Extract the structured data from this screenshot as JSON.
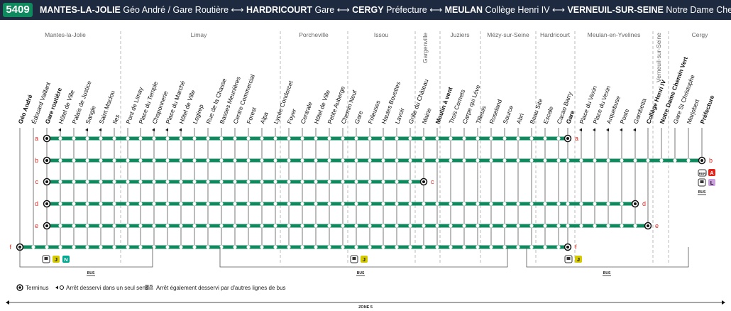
{
  "route": {
    "number": "5409",
    "title_parts": [
      {
        "b": "MANTES-LA-JOLIE",
        "t": " Géo André / Gare Routière"
      },
      {
        "b": "HARDRICOURT",
        "t": " Gare"
      },
      {
        "b": "CERGY",
        "t": " Préfecture"
      },
      {
        "b": "MEULAN",
        "t": " Collège Henri IV"
      },
      {
        "b": "VERNEUIL-SUR-SEINE",
        "t": " Notre Dame Chemin Vert"
      }
    ],
    "arrow": "⟷"
  },
  "colors": {
    "line": "#0f8a5f",
    "header_bg": "#1e2a3f",
    "badge": "#0f8a5f",
    "letter": "#e2261d",
    "rer_a": "#e2231a",
    "line_j": "#d5c900",
    "line_n": "#00a88f",
    "line_l": "#c9a0dc"
  },
  "towns": [
    "Mantes-la-Jolie",
    "Limay",
    "Porcheville",
    "Issou",
    "Gargenville",
    "Juziers",
    "Mézy-sur-Seine",
    "Hardricourt",
    "Meulan-en-Yvelines",
    "Verneuil-sur-Seine",
    "Cergy"
  ],
  "stops": [
    {
      "name": "Géo André",
      "bold": true
    },
    {
      "name": "Édouard Vaillant",
      "bold": false
    },
    {
      "name": "Gare routière",
      "bold": true
    },
    {
      "name": "Hôtel de Ville",
      "bold": false
    },
    {
      "name": "Palais de Justice",
      "bold": false
    },
    {
      "name": "Sangle",
      "bold": false
    },
    {
      "name": "Saint Maclou",
      "bold": false
    },
    {
      "name": "Iles",
      "bold": false
    },
    {
      "name": "Pont de Limay",
      "bold": false
    },
    {
      "name": "Place du Temple",
      "bold": false
    },
    {
      "name": "Chaponnerie",
      "bold": false
    },
    {
      "name": "Place du Marché",
      "bold": false
    },
    {
      "name": "Hôtel de Ville",
      "bold": false
    },
    {
      "name": "Logirep",
      "bold": false
    },
    {
      "name": "Rue de la Chasse",
      "bold": false
    },
    {
      "name": "Basses Meunières",
      "bold": false
    },
    {
      "name": "Centre Commercial",
      "bold": false
    },
    {
      "name": "Forest",
      "bold": false
    },
    {
      "name": "Alpa",
      "bold": false
    },
    {
      "name": "Lycée Condorcet",
      "bold": false
    },
    {
      "name": "Foyer",
      "bold": false
    },
    {
      "name": "Centrale",
      "bold": false
    },
    {
      "name": "Hôtel de Ville",
      "bold": false
    },
    {
      "name": "Petite Auberge",
      "bold": false
    },
    {
      "name": "Chemin Neuf",
      "bold": false
    },
    {
      "name": "Gare",
      "bold": false
    },
    {
      "name": "Frileuses",
      "bold": false
    },
    {
      "name": "Hautes Bovettes",
      "bold": false
    },
    {
      "name": "Lavoir",
      "bold": false
    },
    {
      "name": "Grille du Château",
      "bold": false
    },
    {
      "name": "Mairie",
      "bold": false
    },
    {
      "name": "Moulin à vent",
      "bold": true
    },
    {
      "name": "Trois Cornets",
      "bold": false
    },
    {
      "name": "Carpe qui Lève",
      "bold": false
    },
    {
      "name": "Tilleuls",
      "bold": false
    },
    {
      "name": "Roseland",
      "bold": false
    },
    {
      "name": "Source",
      "bold": false
    },
    {
      "name": "Abri",
      "bold": false
    },
    {
      "name": "Beau Site",
      "bold": false
    },
    {
      "name": "Escale",
      "bold": false
    },
    {
      "name": "Cacao Barry",
      "bold": false
    },
    {
      "name": "Gare",
      "bold": true
    },
    {
      "name": "Place du Vexin",
      "bold": false
    },
    {
      "name": "Place du Vexin",
      "bold": false
    },
    {
      "name": "Arquebuse",
      "bold": false
    },
    {
      "name": "Poste",
      "bold": false
    },
    {
      "name": "Gambetta",
      "bold": false
    },
    {
      "name": "Collège Henri IV",
      "bold": true
    },
    {
      "name": "Notre Dame Chemin Vert",
      "bold": true
    },
    {
      "name": "Gare St Christophe",
      "bold": false
    },
    {
      "name": "Marjobert",
      "bold": false
    },
    {
      "name": "Préfecture",
      "bold": true
    }
  ],
  "rows": [
    {
      "letter": "a",
      "from": 2,
      "to": 41
    },
    {
      "letter": "b",
      "from": 2,
      "to": 51
    },
    {
      "letter": "c",
      "from": 2,
      "to": 30
    },
    {
      "letter": "d",
      "from": 2,
      "to": 46
    },
    {
      "letter": "e",
      "from": 2,
      "to": 47
    },
    {
      "letter": "f",
      "from": 0,
      "to": 41
    }
  ],
  "transfers": {
    "mantes": {
      "icons": [
        "train",
        "J",
        "N"
      ],
      "bus": "BUS"
    },
    "issou": {
      "icons": [
        "train",
        "J"
      ],
      "bus": "BUS"
    },
    "hardricourt": {
      "icons": [
        "train",
        "J"
      ],
      "bus": "BUS"
    },
    "cergy": {
      "rer": "RER",
      "rer_line": "A",
      "train_line": "L",
      "bus": "BUS"
    }
  },
  "legend": {
    "terminus": "Terminus",
    "one_way": "Arrêt desservi dans un seul sens",
    "bus_tag": "BUS",
    "other_lines": "Arrêt également desservi par d'autres lignes de bus"
  },
  "zone": "ZONE 5"
}
